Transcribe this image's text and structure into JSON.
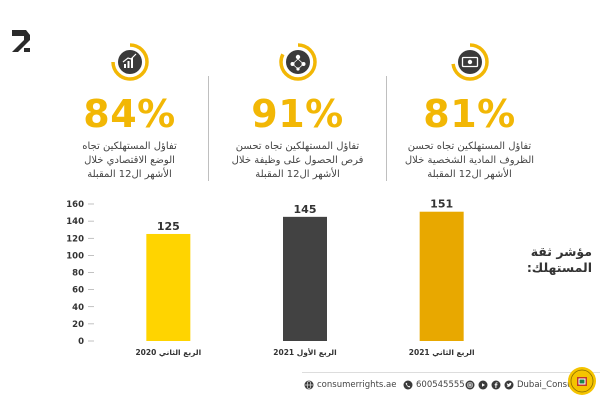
{
  "stats": [
    {
      "id": "economy",
      "icon": "rising-chart-icon",
      "percent": "84%",
      "value": 84,
      "lines": [
        "تفاؤل المستهلكين تجاه",
        "الوضع الاقتصادي خلال",
        "الأشهر ال12 المقبلة"
      ]
    },
    {
      "id": "jobs",
      "icon": "people-network-icon",
      "percent": "91%",
      "value": 91,
      "lines": [
        "تفاؤل المستهلكين تجاه تحسن",
        "فرص الحصول على وظيفة خلال",
        "الأشهر ال12 المقبلة"
      ]
    },
    {
      "id": "finance",
      "icon": "money-bill-icon",
      "percent": "81%",
      "value": 81,
      "lines": [
        "تفاؤل المستهلكين تجاه تحسن",
        "الظروف المادية الشخصية خلال",
        "الأشهر ال12 المقبلة"
      ]
    }
  ],
  "chart_title_lines": [
    "مؤشر ثقة",
    "المستهلك:"
  ],
  "chart_data": {
    "type": "bar",
    "categories": [
      "الربع الثاني 2020",
      "الربع الأول 2021",
      "الربع الثاني 2021"
    ],
    "values": [
      125,
      145,
      151
    ],
    "data_labels": [
      "125",
      "145",
      "151"
    ],
    "bar_colors": [
      "#ffd400",
      "#424242",
      "#e8a800"
    ],
    "ylim": [
      0,
      160
    ],
    "yticks": [
      0,
      20,
      40,
      60,
      80,
      100,
      120,
      140,
      160
    ],
    "ytick_labels": [
      "0",
      "20",
      "40",
      "60",
      "80",
      "100",
      "120",
      "140",
      "160"
    ],
    "grid": false,
    "legend": "none"
  },
  "footer": {
    "website": "consumerrights.ae",
    "phone": "600545555",
    "handle": "Dubai_Consumers"
  },
  "colors": {
    "accent": "#f2b705",
    "text": "#333333",
    "icon_dark": "#3a3a3a"
  }
}
